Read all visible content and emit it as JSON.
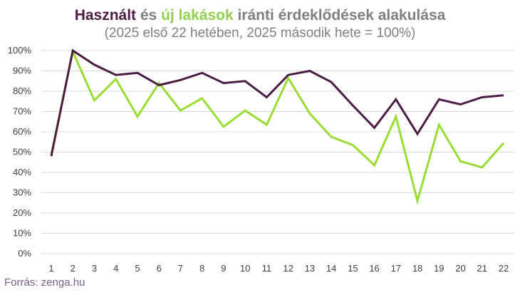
{
  "title": {
    "part1": "Használt",
    "part2": " és ",
    "part3": "új lakások",
    "part4": " iránti érdeklődések alakulása"
  },
  "subtitle": "(2025 első 22 hetében, 2025 második hete = 100%)",
  "source": "Forrás: zenga.hu",
  "colors": {
    "used": "#4b1c44",
    "new": "#99dd33",
    "title_used": "#4b1c44",
    "title_new": "#92d050",
    "grid": "#d9d9d9",
    "text": "#808080"
  },
  "chart_data": {
    "type": "line",
    "x": [
      "1",
      "2",
      "3",
      "4",
      "5",
      "6",
      "7",
      "8",
      "9",
      "10",
      "11",
      "12",
      "13",
      "14",
      "15",
      "16",
      "17",
      "18",
      "19",
      "20",
      "21",
      "22"
    ],
    "yticks": [
      "0%",
      "10%",
      "20%",
      "30%",
      "40%",
      "50%",
      "60%",
      "70%",
      "80%",
      "90%",
      "100%"
    ],
    "ylim": [
      0,
      100
    ],
    "grid": true,
    "series": [
      {
        "name": "Használt",
        "color": "#4b1c44",
        "values": [
          48,
          100,
          93,
          88,
          89,
          83,
          85.5,
          89,
          84,
          85,
          77,
          88,
          90,
          84.5,
          73,
          62,
          76,
          59,
          76,
          73.5,
          77,
          78
        ]
      },
      {
        "name": "új lakások",
        "color": "#99dd33",
        "values": [
          49,
          99.5,
          75.5,
          86,
          67.5,
          84,
          70.5,
          76.5,
          62.5,
          70.5,
          63.5,
          86.5,
          69,
          57.5,
          53.5,
          43.5,
          67.5,
          26,
          63.5,
          45.5,
          42.5,
          54.5
        ]
      }
    ]
  }
}
